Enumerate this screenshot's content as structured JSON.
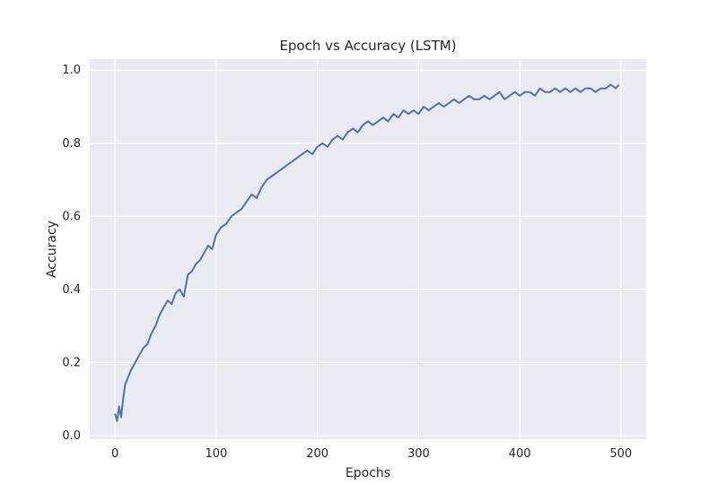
{
  "chart_data": {
    "type": "line",
    "title": "Epoch vs Accuracy (LSTM)",
    "xlabel": "Epochs",
    "ylabel": "Accuracy",
    "xlim": [
      -25,
      525
    ],
    "ylim": [
      -0.01,
      1.03
    ],
    "xticks": [
      0,
      100,
      200,
      300,
      400,
      500
    ],
    "yticks": [
      0.0,
      0.2,
      0.4,
      0.6,
      0.8,
      1.0
    ],
    "xtick_labels": [
      "0",
      "100",
      "200",
      "300",
      "400",
      "500"
    ],
    "ytick_labels": [
      "0.0",
      "0.2",
      "0.4",
      "0.6",
      "0.8",
      "1.0"
    ],
    "grid": true,
    "background": "#eaeaf2",
    "grid_color": "#ffffff",
    "series": [
      {
        "color": "#4c72b0",
        "x": [
          0,
          2,
          4,
          6,
          8,
          10,
          13,
          16,
          20,
          24,
          28,
          32,
          36,
          40,
          44,
          48,
          52,
          56,
          60,
          64,
          68,
          72,
          76,
          80,
          84,
          88,
          92,
          96,
          100,
          105,
          110,
          115,
          120,
          125,
          130,
          135,
          140,
          145,
          150,
          155,
          160,
          165,
          170,
          175,
          180,
          185,
          190,
          195,
          200,
          205,
          210,
          215,
          220,
          225,
          230,
          235,
          240,
          245,
          250,
          255,
          260,
          265,
          270,
          275,
          280,
          285,
          290,
          295,
          300,
          305,
          310,
          315,
          320,
          325,
          330,
          335,
          340,
          345,
          350,
          355,
          360,
          365,
          370,
          375,
          380,
          385,
          390,
          395,
          400,
          405,
          410,
          415,
          420,
          425,
          430,
          435,
          440,
          445,
          450,
          455,
          460,
          465,
          470,
          475,
          480,
          485,
          490,
          495,
          498
        ],
        "y": [
          0.06,
          0.04,
          0.08,
          0.05,
          0.1,
          0.14,
          0.16,
          0.18,
          0.2,
          0.22,
          0.24,
          0.25,
          0.28,
          0.3,
          0.33,
          0.35,
          0.37,
          0.36,
          0.39,
          0.4,
          0.38,
          0.44,
          0.45,
          0.47,
          0.48,
          0.5,
          0.52,
          0.51,
          0.55,
          0.57,
          0.58,
          0.6,
          0.61,
          0.62,
          0.64,
          0.66,
          0.65,
          0.68,
          0.7,
          0.71,
          0.72,
          0.73,
          0.74,
          0.75,
          0.76,
          0.77,
          0.78,
          0.77,
          0.79,
          0.8,
          0.79,
          0.81,
          0.82,
          0.81,
          0.83,
          0.84,
          0.83,
          0.85,
          0.86,
          0.85,
          0.86,
          0.87,
          0.86,
          0.88,
          0.87,
          0.89,
          0.88,
          0.89,
          0.88,
          0.9,
          0.89,
          0.9,
          0.91,
          0.9,
          0.91,
          0.92,
          0.91,
          0.92,
          0.93,
          0.92,
          0.92,
          0.93,
          0.92,
          0.93,
          0.94,
          0.92,
          0.93,
          0.94,
          0.93,
          0.94,
          0.94,
          0.93,
          0.95,
          0.94,
          0.94,
          0.95,
          0.94,
          0.95,
          0.94,
          0.95,
          0.94,
          0.95,
          0.95,
          0.94,
          0.95,
          0.95,
          0.96,
          0.95,
          0.96
        ]
      }
    ]
  }
}
